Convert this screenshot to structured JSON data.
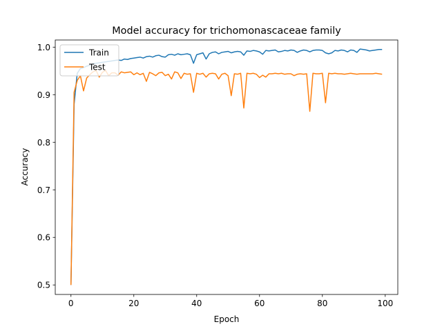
{
  "chart_data": {
    "type": "line",
    "title": "Model accuracy for trichomonascaceae family",
    "xlabel": "Epoch",
    "ylabel": "Accuracy",
    "xlim": [
      -5,
      104
    ],
    "ylim": [
      0.48,
      1.015
    ],
    "xticks": [
      0,
      20,
      40,
      60,
      80,
      100
    ],
    "yticks": [
      0.5,
      0.6,
      0.7,
      0.8,
      0.9,
      1.0
    ],
    "xtick_labels": [
      "0",
      "20",
      "40",
      "60",
      "80",
      "100"
    ],
    "ytick_labels": [
      "0.5",
      "0.6",
      "0.7",
      "0.8",
      "0.9",
      "1.0"
    ],
    "grid": false,
    "legend_position": "upper left",
    "series": [
      {
        "name": "Train",
        "color": "#1f77b4",
        "values": [
          0.5,
          0.88,
          0.945,
          0.955,
          0.957,
          0.96,
          0.962,
          0.965,
          0.966,
          0.967,
          0.968,
          0.969,
          0.97,
          0.971,
          0.972,
          0.973,
          0.972,
          0.975,
          0.974,
          0.976,
          0.977,
          0.978,
          0.979,
          0.977,
          0.98,
          0.981,
          0.979,
          0.982,
          0.983,
          0.98,
          0.979,
          0.984,
          0.985,
          0.983,
          0.986,
          0.984,
          0.985,
          0.986,
          0.984,
          0.966,
          0.984,
          0.986,
          0.988,
          0.975,
          0.986,
          0.989,
          0.99,
          0.986,
          0.989,
          0.99,
          0.991,
          0.988,
          0.99,
          0.991,
          0.99,
          0.983,
          0.992,
          0.991,
          0.993,
          0.992,
          0.99,
          0.985,
          0.993,
          0.992,
          0.993,
          0.994,
          0.99,
          0.991,
          0.993,
          0.992,
          0.994,
          0.993,
          0.989,
          0.992,
          0.994,
          0.993,
          0.99,
          0.993,
          0.994,
          0.994,
          0.993,
          0.988,
          0.986,
          0.988,
          0.993,
          0.992,
          0.994,
          0.993,
          0.99,
          0.994,
          0.993,
          0.989,
          0.996,
          0.995,
          0.994,
          0.992,
          0.993,
          0.994,
          0.995,
          0.995
        ]
      },
      {
        "name": "Test",
        "color": "#ff7f0e",
        "values": [
          0.5,
          0.905,
          0.93,
          0.94,
          0.908,
          0.935,
          0.942,
          0.948,
          0.951,
          0.937,
          0.947,
          0.951,
          0.94,
          0.946,
          0.946,
          0.941,
          0.948,
          0.946,
          0.947,
          0.948,
          0.942,
          0.946,
          0.942,
          0.945,
          0.928,
          0.947,
          0.944,
          0.94,
          0.946,
          0.947,
          0.94,
          0.943,
          0.933,
          0.948,
          0.946,
          0.934,
          0.945,
          0.943,
          0.944,
          0.905,
          0.945,
          0.943,
          0.945,
          0.937,
          0.944,
          0.945,
          0.944,
          0.933,
          0.943,
          0.945,
          0.94,
          0.898,
          0.944,
          0.943,
          0.945,
          0.872,
          0.945,
          0.944,
          0.945,
          0.943,
          0.936,
          0.941,
          0.937,
          0.944,
          0.944,
          0.945,
          0.944,
          0.945,
          0.943,
          0.944,
          0.944,
          0.94,
          0.943,
          0.944,
          0.943,
          0.944,
          0.865,
          0.945,
          0.944,
          0.944,
          0.945,
          0.883,
          0.945,
          0.944,
          0.945,
          0.944,
          0.944,
          0.943,
          0.944,
          0.945,
          0.944,
          0.943,
          0.944,
          0.944,
          0.944,
          0.944,
          0.944,
          0.945,
          0.944,
          0.943
        ]
      }
    ]
  }
}
